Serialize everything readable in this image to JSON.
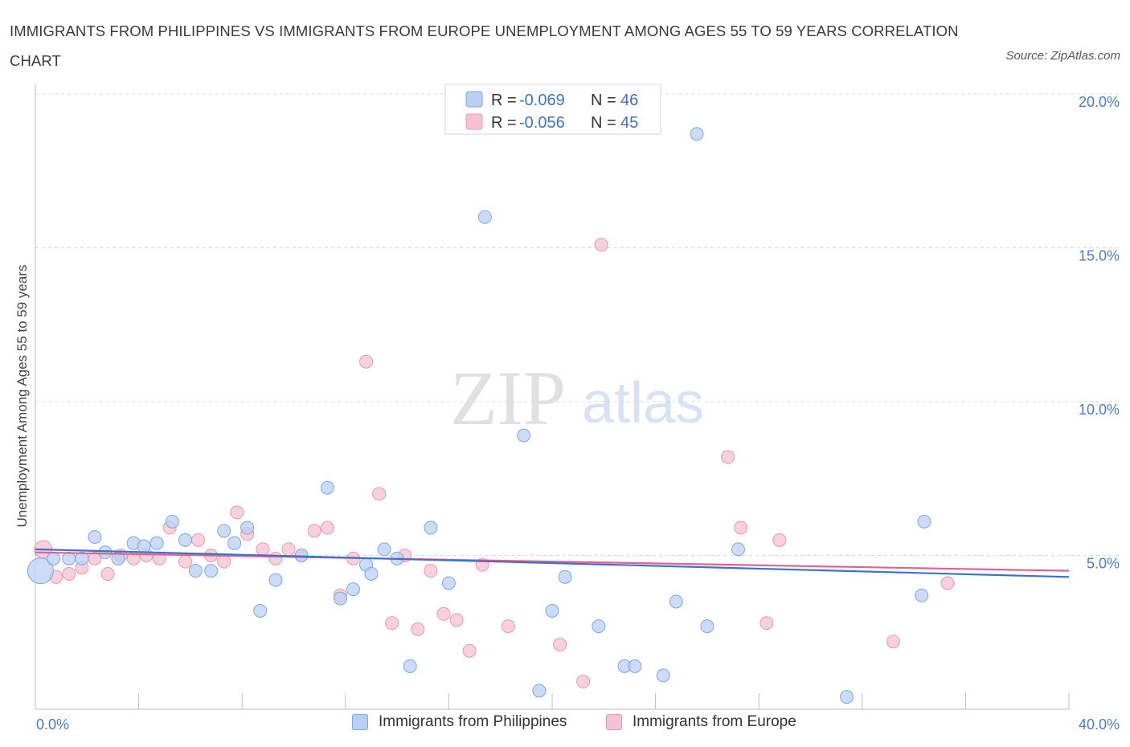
{
  "header": {
    "title": "IMMIGRANTS FROM PHILIPPINES VS IMMIGRANTS FROM EUROPE UNEMPLOYMENT AMONG AGES 55 TO 59 YEARS CORRELATION CHART",
    "source": "Source: ZipAtlas.com"
  },
  "watermark": {
    "zip": "ZIP",
    "atlas": "atlas"
  },
  "colors": {
    "blue_fill": "#b9d0f5",
    "blue_stroke": "#7ea6e3",
    "blue_line": "#3a72cf",
    "pink_fill": "#f6c2d2",
    "pink_stroke": "#e996b2",
    "pink_line": "#e0628f",
    "tick_text": "#4a7cc9",
    "grid": "#d8d8d8"
  },
  "chart_data": {
    "type": "scatter",
    "title": "IMMIGRANTS FROM PHILIPPINES VS IMMIGRANTS FROM EUROPE UNEMPLOYMENT AMONG AGES 55 TO 59 YEARS CORRELATION CHART",
    "xlabel": "",
    "ylabel": "Unemployment Among Ages 55 to 59 years",
    "xlim": [
      0,
      40
    ],
    "ylim": [
      0,
      20
    ],
    "x_tick_labels": [
      "0.0%",
      "40.0%"
    ],
    "y_ticks": [
      5,
      10,
      15,
      20
    ],
    "y_tick_labels": [
      "5.0%",
      "10.0%",
      "15.0%",
      "20.0%"
    ],
    "grid": true,
    "legend_position": "top-center",
    "legend": [
      {
        "r_label": "R =",
        "r_value": "-0.069",
        "n_label": "N =",
        "n_value": "46"
      },
      {
        "r_label": "R =",
        "r_value": "-0.056",
        "n_label": "N =",
        "n_value": "45"
      }
    ],
    "series": [
      {
        "name": "Immigrants from Philippines",
        "color": "#b9d0f5",
        "trend": [
          [
            0,
            5.2
          ],
          [
            40,
            4.3
          ]
        ],
        "points": [
          [
            0.2,
            4.5
          ],
          [
            0.7,
            4.9
          ],
          [
            1.3,
            4.9
          ],
          [
            1.8,
            4.9
          ],
          [
            2.3,
            5.6
          ],
          [
            2.7,
            5.1
          ],
          [
            3.2,
            4.9
          ],
          [
            3.8,
            5.4
          ],
          [
            4.2,
            5.3
          ],
          [
            4.7,
            5.4
          ],
          [
            5.3,
            6.1
          ],
          [
            5.8,
            5.5
          ],
          [
            6.2,
            4.5
          ],
          [
            6.8,
            4.5
          ],
          [
            7.3,
            5.8
          ],
          [
            7.7,
            5.4
          ],
          [
            8.2,
            5.9
          ],
          [
            8.7,
            3.2
          ],
          [
            9.3,
            4.2
          ],
          [
            10.3,
            5.0
          ],
          [
            11.3,
            7.2
          ],
          [
            11.8,
            3.6
          ],
          [
            12.3,
            3.9
          ],
          [
            12.8,
            4.7
          ],
          [
            13.0,
            4.4
          ],
          [
            13.5,
            5.2
          ],
          [
            14.0,
            4.9
          ],
          [
            14.5,
            1.4
          ],
          [
            15.3,
            5.9
          ],
          [
            16.0,
            4.1
          ],
          [
            17.4,
            16.0
          ],
          [
            18.9,
            8.9
          ],
          [
            19.5,
            0.6
          ],
          [
            20.0,
            3.2
          ],
          [
            20.5,
            4.3
          ],
          [
            21.8,
            2.7
          ],
          [
            22.8,
            1.4
          ],
          [
            23.2,
            1.4
          ],
          [
            24.3,
            1.1
          ],
          [
            24.8,
            3.5
          ],
          [
            25.6,
            18.7
          ],
          [
            26.0,
            2.7
          ],
          [
            27.2,
            5.2
          ],
          [
            31.4,
            0.4
          ],
          [
            34.3,
            3.7
          ],
          [
            34.4,
            6.1
          ]
        ]
      },
      {
        "name": "Immigrants from Europe",
        "color": "#f6c2d2",
        "trend": [
          [
            0,
            5.1
          ],
          [
            40,
            4.5
          ]
        ],
        "points": [
          [
            0.3,
            5.2
          ],
          [
            0.8,
            4.3
          ],
          [
            1.3,
            4.4
          ],
          [
            1.8,
            4.6
          ],
          [
            2.3,
            4.9
          ],
          [
            2.8,
            4.4
          ],
          [
            3.3,
            5.0
          ],
          [
            3.8,
            4.9
          ],
          [
            4.3,
            5.0
          ],
          [
            4.8,
            4.9
          ],
          [
            5.2,
            5.9
          ],
          [
            5.8,
            4.8
          ],
          [
            6.3,
            5.5
          ],
          [
            6.8,
            5.0
          ],
          [
            7.3,
            4.8
          ],
          [
            7.8,
            6.4
          ],
          [
            8.2,
            5.7
          ],
          [
            8.8,
            5.2
          ],
          [
            9.3,
            4.9
          ],
          [
            9.8,
            5.2
          ],
          [
            10.3,
            5.0
          ],
          [
            10.8,
            5.8
          ],
          [
            11.3,
            5.9
          ],
          [
            11.8,
            3.7
          ],
          [
            12.3,
            4.9
          ],
          [
            12.8,
            11.3
          ],
          [
            13.3,
            7.0
          ],
          [
            13.8,
            2.8
          ],
          [
            14.3,
            5.0
          ],
          [
            14.8,
            2.6
          ],
          [
            15.3,
            4.5
          ],
          [
            15.8,
            3.1
          ],
          [
            16.3,
            2.9
          ],
          [
            16.8,
            1.9
          ],
          [
            17.3,
            4.7
          ],
          [
            18.3,
            2.7
          ],
          [
            20.3,
            2.1
          ],
          [
            21.2,
            0.9
          ],
          [
            21.9,
            15.1
          ],
          [
            26.8,
            8.2
          ],
          [
            27.3,
            5.9
          ],
          [
            28.3,
            2.8
          ],
          [
            28.8,
            5.5
          ],
          [
            33.2,
            2.2
          ],
          [
            35.3,
            4.1
          ]
        ]
      }
    ]
  },
  "bottom_legend": {
    "item1": "Immigrants from Philippines",
    "item2": "Immigrants from Europe"
  }
}
